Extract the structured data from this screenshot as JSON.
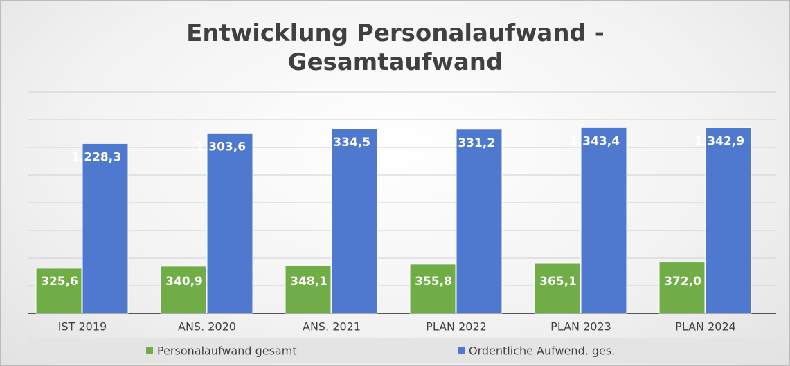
{
  "chart_data": {
    "type": "bar",
    "title": "Entwicklung Personalaufwand - Gesamtaufwand",
    "categories": [
      "IST 2019",
      "ANS. 2020",
      "ANS. 2021",
      "PLAN 2022",
      "PLAN 2023",
      "PLAN 2024"
    ],
    "series": [
      {
        "name": "Personalaufwand gesamt",
        "color": "#70ad47",
        "values": [
          325.6,
          340.9,
          348.1,
          355.8,
          365.1,
          372.0
        ],
        "value_labels": [
          "325,6",
          "340,9",
          "348,1",
          "355,8",
          "365,1",
          "372,0"
        ]
      },
      {
        "name": "Ordentliche Aufwend. ges.",
        "color": "#4f79cf",
        "values": [
          1228.3,
          1303.6,
          1334.5,
          1331.2,
          1343.4,
          1342.9
        ],
        "value_labels": [
          "1.228,3",
          "1.303,6",
          "1.334,5",
          "1.331,2",
          "1.343,4",
          "1.342,9"
        ]
      }
    ],
    "ylim": [
      0,
      1600
    ],
    "yticks": [
      0,
      200,
      400,
      600,
      800,
      1000,
      1200,
      1400,
      1600
    ],
    "grid": true,
    "legend": "bottom"
  }
}
